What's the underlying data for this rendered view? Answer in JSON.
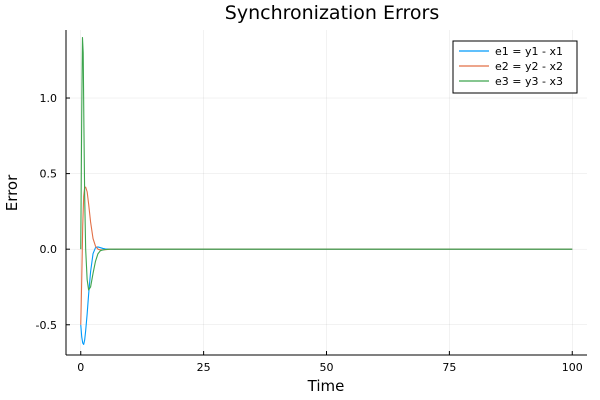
{
  "chart_data": {
    "type": "line",
    "title": "Synchronization Errors",
    "xlabel": "Time",
    "ylabel": "Error",
    "xlim": [
      -3,
      103
    ],
    "ylim": [
      -0.7,
      1.45
    ],
    "xticks": [
      0,
      25,
      50,
      75,
      100
    ],
    "xtick_labels": [
      "0",
      "25",
      "50",
      "75",
      "100"
    ],
    "yticks": [
      -0.5,
      0.0,
      0.5,
      1.0
    ],
    "ytick_labels": [
      "-0.5",
      "0.0",
      "0.5",
      "1.0"
    ],
    "grid": true,
    "legend_position": "top-right",
    "series": [
      {
        "name": "e1 = y1 - x1",
        "color": "#009AF9",
        "x": [
          0,
          0.2,
          0.4,
          0.6,
          0.8,
          1.0,
          1.3,
          1.6,
          2.0,
          2.5,
          3.0,
          3.5,
          4.0,
          4.5,
          5.0,
          6.0,
          7.0,
          8.0,
          10.0,
          15.0,
          20.0,
          50.0,
          100.0
        ],
        "y": [
          -0.5,
          -0.58,
          -0.62,
          -0.63,
          -0.6,
          -0.54,
          -0.43,
          -0.3,
          -0.15,
          -0.03,
          0.01,
          0.015,
          0.01,
          0.005,
          0.002,
          0.0,
          -0.001,
          0.0,
          0.0,
          0.0,
          0.0,
          0.0,
          0.0
        ]
      },
      {
        "name": "e2 = y2 - x2",
        "color": "#E26F46",
        "x": [
          0,
          0.2,
          0.4,
          0.6,
          0.8,
          1.0,
          1.3,
          1.6,
          2.0,
          2.5,
          3.0,
          3.5,
          4.0,
          4.5,
          5.0,
          6.0,
          7.0,
          8.0,
          10.0,
          15.0,
          20.0,
          50.0,
          100.0
        ],
        "y": [
          -0.5,
          -0.2,
          0.15,
          0.35,
          0.41,
          0.41,
          0.38,
          0.3,
          0.18,
          0.07,
          0.02,
          0.0,
          -0.005,
          -0.005,
          -0.003,
          0.0,
          0.0,
          0.0,
          0.0,
          0.0,
          0.0,
          0.0,
          0.0
        ]
      },
      {
        "name": "e3 = y3 - x3",
        "color": "#3DA44D",
        "x": [
          0,
          0.2,
          0.35,
          0.5,
          0.65,
          0.8,
          1.0,
          1.3,
          1.6,
          2.0,
          2.5,
          3.0,
          3.5,
          4.0,
          4.5,
          5.0,
          6.0,
          7.0,
          8.0,
          10.0,
          15.0,
          20.0,
          50.0,
          100.0
        ],
        "y": [
          0.0,
          0.9,
          1.4,
          1.3,
          0.8,
          0.35,
          0.0,
          -0.2,
          -0.27,
          -0.25,
          -0.16,
          -0.08,
          -0.03,
          -0.01,
          -0.005,
          -0.002,
          0.0,
          0.0,
          0.0,
          0.0,
          0.0,
          0.0,
          0.0,
          0.0
        ]
      }
    ]
  }
}
